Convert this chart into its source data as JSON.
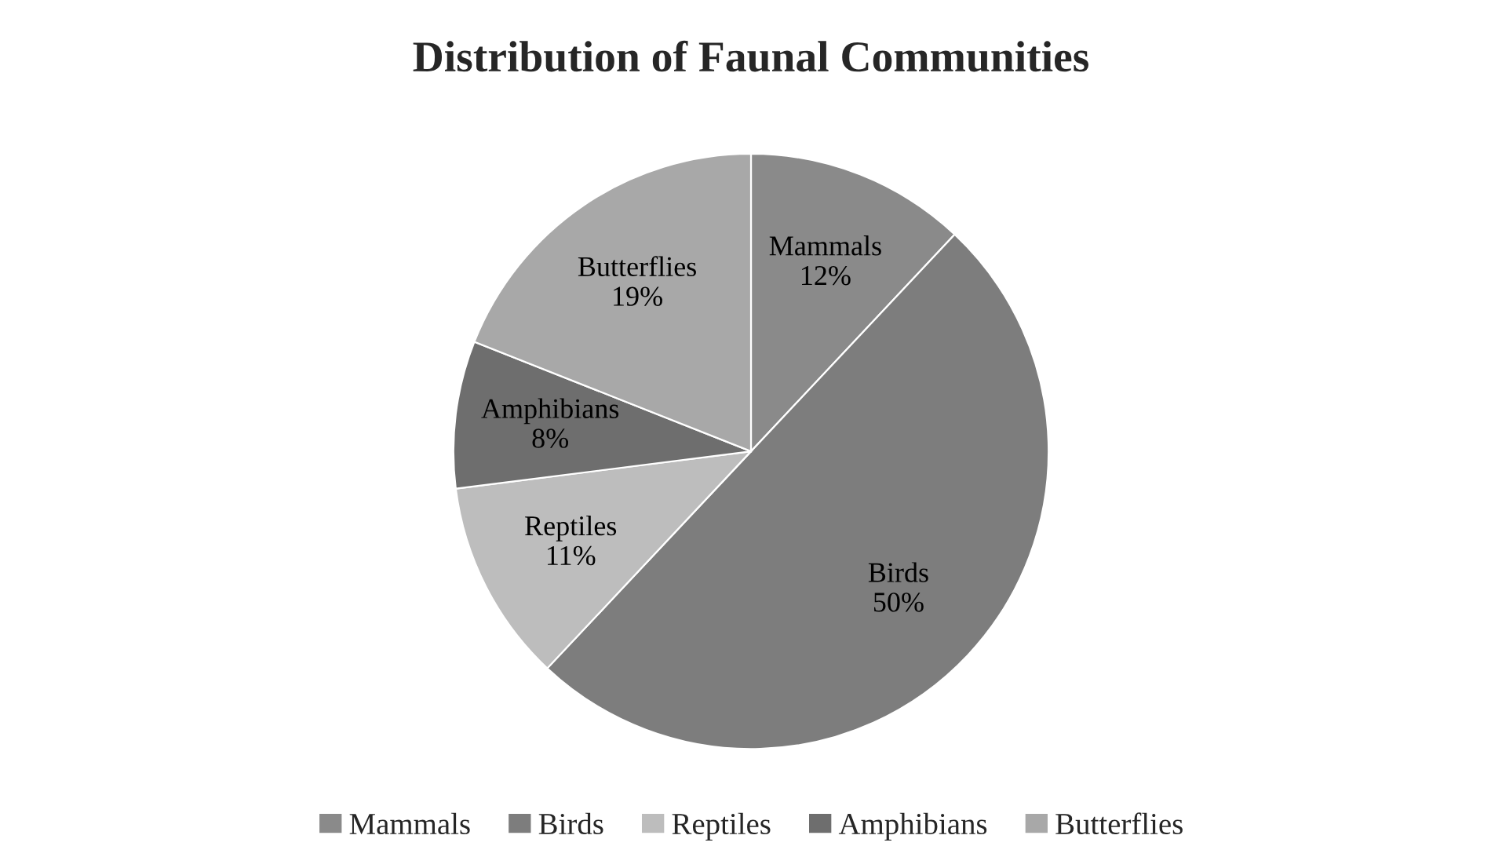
{
  "chart_data": {
    "type": "pie",
    "title": "Distribution of Faunal Communities",
    "categories": [
      "Mammals",
      "Birds",
      "Reptiles",
      "Amphibians",
      "Butterflies"
    ],
    "values": [
      12,
      50,
      11,
      8,
      19
    ],
    "value_labels": [
      "12%",
      "50%",
      "11%",
      "8%",
      "19%"
    ],
    "colors": [
      "#8a8a8a",
      "#7d7d7d",
      "#bdbdbd",
      "#6e6e6e",
      "#a8a8a8"
    ],
    "legend": "bottom"
  }
}
